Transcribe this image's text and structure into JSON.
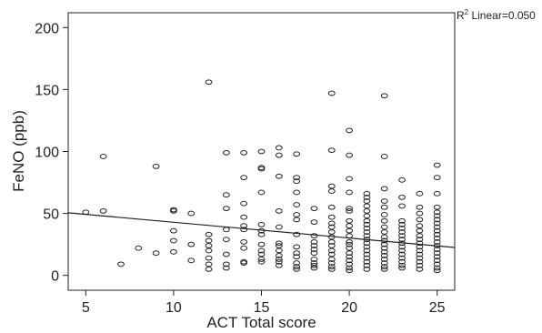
{
  "chart_data": {
    "type": "scatter",
    "xlabel": "ACT Total score",
    "ylabel": "FeNO (ppb)",
    "xlim": [
      4,
      26
    ],
    "ylim": [
      -12,
      212
    ],
    "x_ticks": [
      5,
      10,
      15,
      20,
      25
    ],
    "y_ticks": [
      0,
      50,
      100,
      150,
      200
    ],
    "grid": false,
    "marker": "hollow-ellipse",
    "fit_line": {
      "type": "linear",
      "label_prefix": "R",
      "label_superscript": "2",
      "label_suffix": " Linear=0.050",
      "x": [
        4,
        26
      ],
      "y": [
        50.5,
        22.5
      ]
    },
    "points": [
      [
        5,
        51
      ],
      [
        6,
        96
      ],
      [
        6,
        52
      ],
      [
        7,
        9
      ],
      [
        8,
        22
      ],
      [
        9,
        88
      ],
      [
        9,
        18
      ],
      [
        10,
        53
      ],
      [
        10,
        52
      ],
      [
        10,
        36
      ],
      [
        10,
        28
      ],
      [
        10,
        19
      ],
      [
        11,
        50
      ],
      [
        11,
        25
      ],
      [
        11,
        12
      ],
      [
        12,
        156
      ],
      [
        12,
        33
      ],
      [
        12,
        28
      ],
      [
        12,
        24
      ],
      [
        12,
        20
      ],
      [
        12,
        14
      ],
      [
        12,
        9
      ],
      [
        12,
        5
      ],
      [
        13,
        99
      ],
      [
        13,
        65
      ],
      [
        13,
        54
      ],
      [
        13,
        37
      ],
      [
        13,
        29
      ],
      [
        13,
        17
      ],
      [
        13,
        9
      ],
      [
        13,
        6
      ],
      [
        14,
        99
      ],
      [
        14,
        79
      ],
      [
        14,
        58
      ],
      [
        14,
        47
      ],
      [
        14,
        40
      ],
      [
        14,
        37
      ],
      [
        14,
        27
      ],
      [
        14,
        22
      ],
      [
        14,
        11
      ],
      [
        14,
        10
      ],
      [
        15,
        100
      ],
      [
        15,
        87
      ],
      [
        15,
        86
      ],
      [
        15,
        67
      ],
      [
        15,
        41
      ],
      [
        15,
        36
      ],
      [
        15,
        33
      ],
      [
        15,
        25
      ],
      [
        15,
        20
      ],
      [
        15,
        17
      ],
      [
        15,
        13
      ],
      [
        15,
        11
      ],
      [
        16,
        103
      ],
      [
        16,
        97
      ],
      [
        16,
        80
      ],
      [
        16,
        52
      ],
      [
        16,
        39
      ],
      [
        16,
        26
      ],
      [
        16,
        24
      ],
      [
        16,
        20
      ],
      [
        16,
        16
      ],
      [
        16,
        13
      ],
      [
        16,
        11
      ],
      [
        16,
        8
      ],
      [
        17,
        98
      ],
      [
        17,
        79
      ],
      [
        17,
        76
      ],
      [
        17,
        67
      ],
      [
        17,
        57
      ],
      [
        17,
        49
      ],
      [
        17,
        45
      ],
      [
        17,
        33
      ],
      [
        17,
        23
      ],
      [
        17,
        18
      ],
      [
        17,
        15
      ],
      [
        17,
        10
      ],
      [
        17,
        7
      ],
      [
        17,
        5
      ],
      [
        18,
        54
      ],
      [
        18,
        43
      ],
      [
        18,
        32
      ],
      [
        18,
        27
      ],
      [
        18,
        24
      ],
      [
        18,
        21
      ],
      [
        18,
        18
      ],
      [
        18,
        13
      ],
      [
        18,
        10
      ],
      [
        18,
        8
      ],
      [
        18,
        6
      ],
      [
        19,
        147
      ],
      [
        19,
        101
      ],
      [
        19,
        72
      ],
      [
        19,
        68
      ],
      [
        19,
        55
      ],
      [
        19,
        47
      ],
      [
        19,
        42
      ],
      [
        19,
        39
      ],
      [
        19,
        35
      ],
      [
        19,
        31
      ],
      [
        19,
        27
      ],
      [
        19,
        24
      ],
      [
        19,
        20
      ],
      [
        19,
        17
      ],
      [
        19,
        13
      ],
      [
        19,
        10
      ],
      [
        19,
        7
      ],
      [
        19,
        5
      ],
      [
        20,
        117
      ],
      [
        20,
        97
      ],
      [
        20,
        78
      ],
      [
        20,
        67
      ],
      [
        20,
        54
      ],
      [
        20,
        52
      ],
      [
        20,
        44
      ],
      [
        20,
        40
      ],
      [
        20,
        36
      ],
      [
        20,
        32
      ],
      [
        20,
        27
      ],
      [
        20,
        25
      ],
      [
        20,
        22
      ],
      [
        20,
        18
      ],
      [
        20,
        15
      ],
      [
        20,
        12
      ],
      [
        20,
        9
      ],
      [
        20,
        6
      ],
      [
        20,
        4
      ],
      [
        21,
        66
      ],
      [
        21,
        63
      ],
      [
        21,
        60
      ],
      [
        21,
        56
      ],
      [
        21,
        52
      ],
      [
        21,
        48
      ],
      [
        21,
        44
      ],
      [
        21,
        41
      ],
      [
        21,
        38
      ],
      [
        21,
        35
      ],
      [
        21,
        32
      ],
      [
        21,
        29
      ],
      [
        21,
        26
      ],
      [
        21,
        23
      ],
      [
        21,
        20
      ],
      [
        21,
        17
      ],
      [
        21,
        14
      ],
      [
        21,
        11
      ],
      [
        21,
        8
      ],
      [
        21,
        5
      ],
      [
        22,
        145
      ],
      [
        22,
        96
      ],
      [
        22,
        70
      ],
      [
        22,
        60
      ],
      [
        22,
        55
      ],
      [
        22,
        49
      ],
      [
        22,
        44
      ],
      [
        22,
        39
      ],
      [
        22,
        35
      ],
      [
        22,
        31
      ],
      [
        22,
        28
      ],
      [
        22,
        25
      ],
      [
        22,
        22
      ],
      [
        22,
        19
      ],
      [
        22,
        16
      ],
      [
        22,
        13
      ],
      [
        22,
        10
      ],
      [
        22,
        7
      ],
      [
        22,
        5
      ],
      [
        23,
        77
      ],
      [
        23,
        63
      ],
      [
        23,
        56
      ],
      [
        23,
        44
      ],
      [
        23,
        41
      ],
      [
        23,
        38
      ],
      [
        23,
        35
      ],
      [
        23,
        32
      ],
      [
        23,
        29
      ],
      [
        23,
        26
      ],
      [
        23,
        23
      ],
      [
        23,
        20
      ],
      [
        23,
        17
      ],
      [
        23,
        14
      ],
      [
        23,
        11
      ],
      [
        23,
        8
      ],
      [
        23,
        6
      ],
      [
        24,
        66
      ],
      [
        24,
        55
      ],
      [
        24,
        50
      ],
      [
        24,
        45
      ],
      [
        24,
        40
      ],
      [
        24,
        36
      ],
      [
        24,
        32
      ],
      [
        24,
        29
      ],
      [
        24,
        26
      ],
      [
        24,
        23
      ],
      [
        24,
        20
      ],
      [
        24,
        17
      ],
      [
        24,
        14
      ],
      [
        24,
        11
      ],
      [
        24,
        8
      ],
      [
        24,
        5
      ],
      [
        25,
        89
      ],
      [
        25,
        79
      ],
      [
        25,
        66
      ],
      [
        25,
        55
      ],
      [
        25,
        51
      ],
      [
        25,
        48
      ],
      [
        25,
        45
      ],
      [
        25,
        42
      ],
      [
        25,
        39
      ],
      [
        25,
        36
      ],
      [
        25,
        33
      ],
      [
        25,
        30
      ],
      [
        25,
        27
      ],
      [
        25,
        24
      ],
      [
        25,
        21
      ],
      [
        25,
        18
      ],
      [
        25,
        15
      ],
      [
        25,
        12
      ],
      [
        25,
        9
      ],
      [
        25,
        6
      ],
      [
        25,
        4
      ]
    ]
  }
}
